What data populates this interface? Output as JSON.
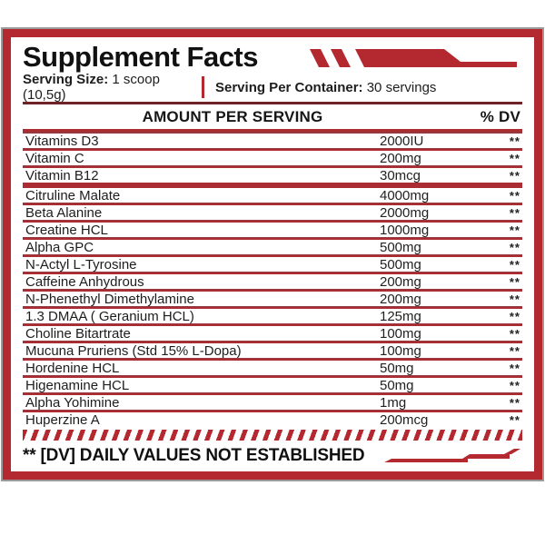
{
  "title": "Supplement Facts",
  "serving": {
    "size_label": "Serving Size:",
    "size_value": "1 scoop (10,5g)",
    "container_label": "Serving Per Container:",
    "container_value": "30 servings"
  },
  "table": {
    "amount_header": "AMOUNT PER SERVING",
    "dv_header": "% DV",
    "rows": [
      {
        "name": "Vitamins D3",
        "amount": "2000IU",
        "dv": "**"
      },
      {
        "name": "Vitamin C",
        "amount": "200mg",
        "dv": "**"
      },
      {
        "name": "Vitamin B12",
        "amount": "30mcg",
        "dv": "**",
        "thick_sep_after": true
      },
      {
        "name": "Citruline Malate",
        "amount": "4000mg",
        "dv": "**"
      },
      {
        "name": "Beta Alanine",
        "amount": "2000mg",
        "dv": "**"
      },
      {
        "name": "Creatine HCL",
        "amount": "1000mg",
        "dv": "**"
      },
      {
        "name": "Alpha GPC",
        "amount": "500mg",
        "dv": "**"
      },
      {
        "name": "N-Actyl L-Tyrosine",
        "amount": "500mg",
        "dv": "**"
      },
      {
        "name": "Caffeine Anhydrous",
        "amount": "200mg",
        "dv": "**"
      },
      {
        "name": "N-Phenethyl Dimethylamine",
        "amount": "200mg",
        "dv": "**"
      },
      {
        "name": "1.3 DMAA ( Geranium HCL)",
        "amount": "125mg",
        "dv": "**"
      },
      {
        "name": "Choline Bitartrate",
        "amount": "100mg",
        "dv": "**"
      },
      {
        "name": "Mucuna Pruriens (Std 15% L-Dopa)",
        "amount": "100mg",
        "dv": "**"
      },
      {
        "name": "Hordenine HCL",
        "amount": "50mg",
        "dv": "**"
      },
      {
        "name": "Higenamine HCL",
        "amount": "50mg",
        "dv": "**"
      },
      {
        "name": "Alpha Yohimine",
        "amount": "1mg",
        "dv": "**"
      },
      {
        "name": "Huperzine A",
        "amount": "200mcg",
        "dv": "**"
      }
    ]
  },
  "footer": {
    "note": "** [DV] DAILY VALUES NOT ESTABLISHED"
  },
  "colors": {
    "accent_red": "#b4292f",
    "dark_rule": "#6f2327",
    "sep_dark": "#96393d",
    "sep_red": "#ab2c32",
    "text": "#1d1d1d",
    "frame_gray": "#9a9a9a"
  }
}
